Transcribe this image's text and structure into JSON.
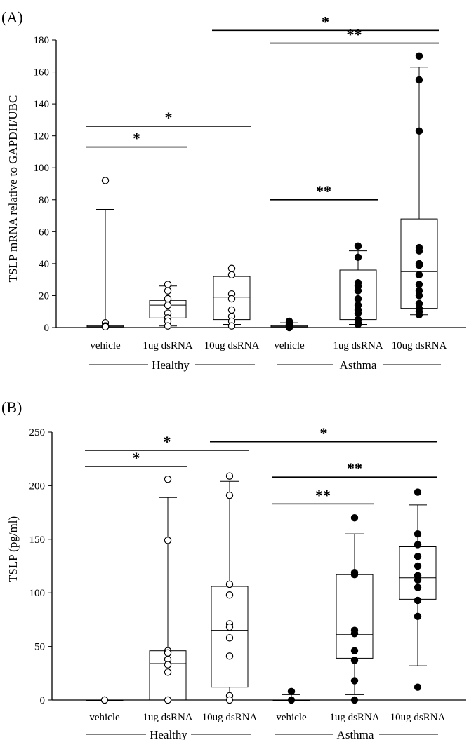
{
  "panels": [
    {
      "panel_label": "(A)",
      "ylabel": "TSLP mRNA relative to GAPDH/UBC",
      "yticks": [
        "0",
        "20",
        "40",
        "60",
        "80",
        "100",
        "120",
        "140",
        "160",
        "180"
      ],
      "group_labels": [
        "Healthy",
        "Asthma"
      ]
    },
    {
      "panel_label": "(B)",
      "ylabel": "TSLP (pg/ml)",
      "yticks": [
        "0",
        "50",
        "100",
        "150",
        "200",
        "250"
      ],
      "group_labels": [
        "Healthy",
        "Asthma"
      ]
    }
  ],
  "colors": {
    "healthy_marker_fill": "#ffffff",
    "asthma_marker_fill": "#000000",
    "stroke": "#000000"
  },
  "chart_data": [
    {
      "type": "box",
      "title": "",
      "ylabel": "TSLP mRNA relative to GAPDH/UBC",
      "ylim": [
        0,
        180
      ],
      "categories": [
        "vehicle",
        "1ug dsRNA",
        "10ug dsRNA",
        "vehicle",
        "1ug dsRNA",
        "10ug dsRNA"
      ],
      "groups": [
        {
          "name": "Healthy",
          "categories": [
            0,
            1,
            2
          ]
        },
        {
          "name": "Asthma",
          "categories": [
            3,
            4,
            5
          ]
        }
      ],
      "series": [
        {
          "category": 0,
          "group": "Healthy",
          "filled": false,
          "whisker_low": 0,
          "q1": 0.5,
          "median": 1,
          "q3": 1.5,
          "whisker_high": 74,
          "points": [
            92,
            3,
            1,
            1,
            1,
            0.5,
            0.5,
            0.5
          ]
        },
        {
          "category": 1,
          "group": "Healthy",
          "filled": false,
          "whisker_low": 1,
          "q1": 6,
          "median": 14,
          "q3": 17,
          "whisker_high": 26,
          "points": [
            27,
            23,
            18,
            14,
            9,
            6,
            4,
            1
          ]
        },
        {
          "category": 2,
          "group": "Healthy",
          "filled": false,
          "whisker_low": 2,
          "q1": 5,
          "median": 19,
          "q3": 32,
          "whisker_high": 38,
          "points": [
            37,
            33,
            21,
            18,
            11,
            7,
            4,
            1
          ]
        },
        {
          "category": 3,
          "group": "Asthma",
          "filled": true,
          "whisker_low": 0,
          "q1": 0.5,
          "median": 1,
          "q3": 1.5,
          "whisker_high": 3,
          "points": [
            4,
            3,
            2,
            1,
            1,
            0.5,
            0.5,
            0
          ]
        },
        {
          "category": 4,
          "group": "Asthma",
          "filled": true,
          "whisker_low": 2,
          "q1": 5,
          "median": 16,
          "q3": 36,
          "whisker_high": 48,
          "points": [
            51,
            44,
            28,
            26,
            23,
            18,
            14,
            11,
            9,
            5,
            3,
            2
          ]
        },
        {
          "category": 5,
          "group": "Asthma",
          "filled": true,
          "whisker_low": 8,
          "q1": 12,
          "median": 35,
          "q3": 68,
          "whisker_high": 163,
          "points": [
            170,
            155,
            123,
            50,
            48,
            40,
            39,
            33,
            27,
            23,
            20,
            15,
            12,
            10,
            8
          ]
        }
      ],
      "significance": [
        {
          "from": 0,
          "to": 1,
          "label": "*",
          "y": 113
        },
        {
          "from": 0,
          "to": 2,
          "label": "*",
          "y": 126
        },
        {
          "from": 3,
          "to": 4,
          "label": "**",
          "y": 80
        },
        {
          "from": 3,
          "to": 5,
          "label": "**",
          "y": 178
        },
        {
          "from": 2,
          "to": 5,
          "label": "*",
          "y": 186
        }
      ]
    },
    {
      "type": "box",
      "title": "",
      "ylabel": "TSLP (pg/ml)",
      "ylim": [
        0,
        250
      ],
      "categories": [
        "vehicle",
        "1ug dsRNA",
        "10ug dsRNA",
        "vehicle",
        "1ug dsRNA",
        "10ug dsRNA"
      ],
      "groups": [
        {
          "name": "Healthy",
          "categories": [
            0,
            1,
            2
          ]
        },
        {
          "name": "Asthma",
          "categories": [
            3,
            4,
            5
          ]
        }
      ],
      "series": [
        {
          "category": 0,
          "group": "Healthy",
          "filled": false,
          "whisker_low": 0,
          "q1": 0,
          "median": 0,
          "q3": 0,
          "whisker_high": 0,
          "points": [
            0,
            0
          ]
        },
        {
          "category": 1,
          "group": "Healthy",
          "filled": false,
          "whisker_low": 0,
          "q1": 0,
          "median": 34,
          "q3": 46,
          "whisker_high": 189,
          "points": [
            206,
            149,
            46,
            44,
            38,
            33,
            26,
            0
          ]
        },
        {
          "category": 2,
          "group": "Healthy",
          "filled": false,
          "whisker_low": 0,
          "q1": 12,
          "median": 65,
          "q3": 106,
          "whisker_high": 204,
          "points": [
            209,
            191,
            108,
            98,
            71,
            68,
            58,
            41,
            4,
            0
          ]
        },
        {
          "category": 3,
          "group": "Asthma",
          "filled": true,
          "whisker_low": 0,
          "q1": 0,
          "median": 0,
          "q3": 0,
          "whisker_high": 5,
          "points": [
            8,
            0
          ]
        },
        {
          "category": 4,
          "group": "Asthma",
          "filled": true,
          "whisker_low": 5,
          "q1": 39,
          "median": 61,
          "q3": 117,
          "whisker_high": 155,
          "points": [
            170,
            119,
            117,
            65,
            62,
            46,
            37,
            18,
            0
          ]
        },
        {
          "category": 5,
          "group": "Asthma",
          "filled": true,
          "whisker_low": 32,
          "q1": 94,
          "median": 114,
          "q3": 143,
          "whisker_high": 182,
          "points": [
            194,
            155,
            145,
            134,
            125,
            116,
            112,
            105,
            93,
            78,
            12
          ]
        }
      ],
      "significance": [
        {
          "from": 0,
          "to": 1,
          "label": "*",
          "y": 218
        },
        {
          "from": 0,
          "to": 2,
          "label": "*",
          "y": 233
        },
        {
          "from": 3,
          "to": 4,
          "label": "**",
          "y": 183
        },
        {
          "from": 3,
          "to": 5,
          "label": "**",
          "y": 208
        },
        {
          "from": 2,
          "to": 5,
          "label": "*",
          "y": 241
        }
      ]
    }
  ]
}
